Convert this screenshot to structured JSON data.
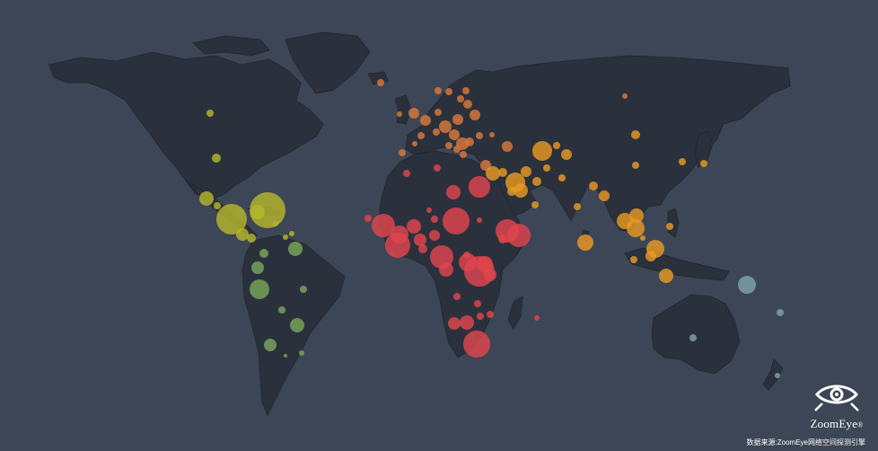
{
  "logo": {
    "name": "ZoomEye",
    "mark": "®"
  },
  "source": "数据来源:ZoomEye网络空间探测引擎",
  "colors": {
    "background": "#3d4656",
    "land": "#2b313c",
    "border": "#20252e",
    "europe": "#d9793a",
    "asia": "#e99a22",
    "africa": "#e0454e",
    "central_america": "#b5b72b",
    "south_america": "#7aa65a",
    "oceania": "#7fa2aa"
  }
}
